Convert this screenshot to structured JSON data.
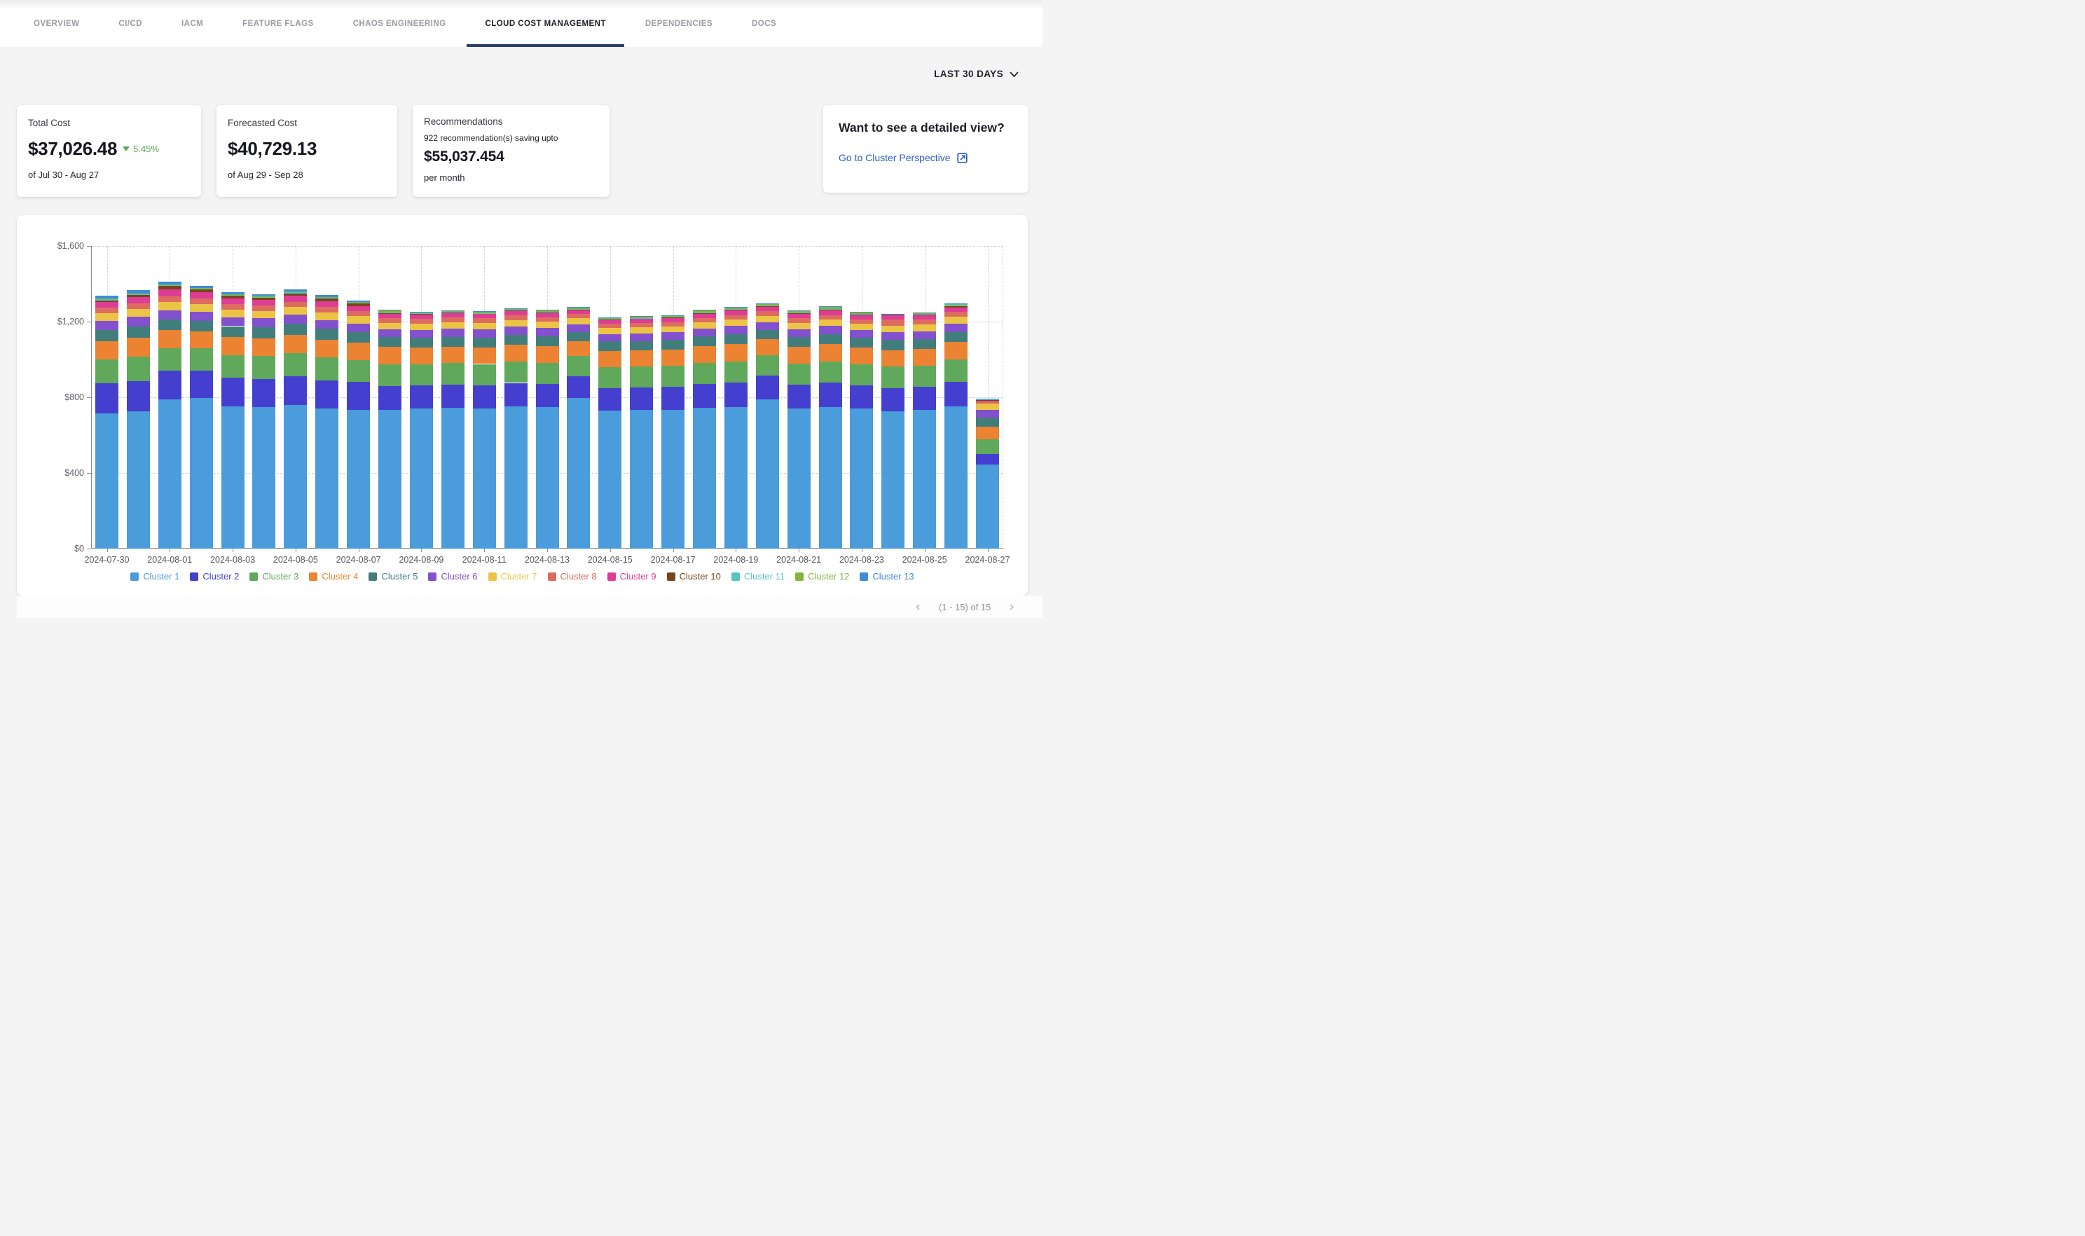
{
  "nav": {
    "tabs": [
      {
        "label": "OVERVIEW",
        "active": false
      },
      {
        "label": "CI/CD",
        "active": false
      },
      {
        "label": "IACM",
        "active": false
      },
      {
        "label": "FEATURE FLAGS",
        "active": false
      },
      {
        "label": "CHAOS ENGINEERING",
        "active": false
      },
      {
        "label": "CLOUD COST MANAGEMENT",
        "active": true
      },
      {
        "label": "DEPENDENCIES",
        "active": false
      },
      {
        "label": "DOCS",
        "active": false
      }
    ]
  },
  "time_filter": {
    "label": "LAST 30 DAYS"
  },
  "cards": {
    "total_cost": {
      "title": "Total Cost",
      "value": "$37,026.48",
      "change": "5.45%",
      "change_direction": "down",
      "change_color": "#57ab5a",
      "period": "of Jul 30 - Aug 27"
    },
    "forecasted_cost": {
      "title": "Forecasted Cost",
      "value": "$40,729.13",
      "period": "of Aug 29 - Sep 28"
    },
    "recommendations": {
      "title": "Recommendations",
      "subtitle": "922 recommendation(s) saving upto",
      "value": "$55,037.454",
      "suffix": "per month"
    },
    "detailed_view": {
      "title": "Want to see a detailed view?",
      "link_label": "Go to Cluster Perspective",
      "link_color": "#2b5fc7"
    }
  },
  "chart_data": {
    "type": "bar",
    "stacked": true,
    "grid": "dashed",
    "legend_position": "bottom",
    "ylim": [
      0,
      1600
    ],
    "yticks": [
      {
        "value": 0,
        "label": "$0"
      },
      {
        "value": 400,
        "label": "$400"
      },
      {
        "value": 800,
        "label": "$800"
      },
      {
        "value": 1200,
        "label": "$1,200"
      },
      {
        "value": 1600,
        "label": "$1,600"
      }
    ],
    "x_label_every": 2,
    "categories": [
      "2024-07-30",
      "2024-07-31",
      "2024-08-01",
      "2024-08-02",
      "2024-08-03",
      "2024-08-04",
      "2024-08-05",
      "2024-08-06",
      "2024-08-07",
      "2024-08-08",
      "2024-08-09",
      "2024-08-10",
      "2024-08-11",
      "2024-08-12",
      "2024-08-13",
      "2024-08-14",
      "2024-08-15",
      "2024-08-16",
      "2024-08-17",
      "2024-08-18",
      "2024-08-19",
      "2024-08-20",
      "2024-08-21",
      "2024-08-22",
      "2024-08-23",
      "2024-08-24",
      "2024-08-25",
      "2024-08-26",
      "2024-08-27"
    ],
    "series": [
      {
        "name": "Cluster 1",
        "color": "#4a9cdb",
        "values": [
          715,
          725,
          790,
          795,
          752,
          748,
          758,
          740,
          735,
          735,
          742,
          745,
          742,
          752,
          748,
          798,
          730,
          732,
          735,
          745,
          750,
          788,
          742,
          750,
          740,
          725,
          732,
          752,
          445
        ]
      },
      {
        "name": "Cluster 2",
        "color": "#453fd0",
        "values": [
          160,
          160,
          150,
          145,
          150,
          150,
          152,
          150,
          145,
          125,
          120,
          122,
          122,
          124,
          123,
          115,
          120,
          120,
          121,
          124,
          126,
          126,
          124,
          126,
          122,
          125,
          124,
          130,
          55
        ]
      },
      {
        "name": "Cluster 3",
        "color": "#5fa85c",
        "values": [
          125,
          130,
          120,
          118,
          122,
          120,
          124,
          120,
          118,
          115,
          112,
          113,
          112,
          113,
          112,
          105,
          110,
          110,
          110,
          112,
          114,
          108,
          112,
          114,
          112,
          112,
          112,
          118,
          78
        ]
      },
      {
        "name": "Cluster 4",
        "color": "#ec8332",
        "values": [
          95,
          100,
          95,
          92,
          95,
          95,
          96,
          95,
          92,
          90,
          88,
          88,
          88,
          89,
          88,
          80,
          85,
          86,
          86,
          88,
          90,
          84,
          88,
          90,
          88,
          88,
          88,
          92,
          66
        ]
      },
      {
        "name": "Cluster 5",
        "color": "#417e7b",
        "values": [
          60,
          60,
          58,
          55,
          57,
          57,
          58,
          57,
          55,
          52,
          52,
          52,
          52,
          53,
          52,
          48,
          50,
          50,
          50,
          52,
          53,
          50,
          52,
          53,
          52,
          52,
          52,
          54,
          50
        ]
      },
      {
        "name": "Cluster 6",
        "color": "#8351ce",
        "values": [
          50,
          50,
          48,
          46,
          47,
          47,
          48,
          47,
          45,
          42,
          42,
          42,
          42,
          42,
          42,
          40,
          40,
          40,
          41,
          42,
          43,
          41,
          42,
          43,
          42,
          42,
          42,
          44,
          40
        ]
      },
      {
        "name": "Cluster 7",
        "color": "#ecc445",
        "values": [
          40,
          42,
          42,
          40,
          40,
          40,
          40,
          40,
          38,
          34,
          34,
          34,
          34,
          34,
          34,
          32,
          32,
          32,
          32,
          33,
          34,
          33,
          33,
          34,
          33,
          34,
          34,
          35,
          34
        ]
      },
      {
        "name": "Cluster 8",
        "color": "#dd6c60",
        "values": [
          28,
          30,
          32,
          30,
          29,
          28,
          29,
          28,
          27,
          25,
          24,
          25,
          25,
          25,
          25,
          23,
          23,
          23,
          23,
          24,
          25,
          24,
          24,
          25,
          24,
          32,
          26,
          26,
          9
        ]
      },
      {
        "name": "Cluster 9",
        "color": "#de3d95",
        "values": [
          30,
          32,
          35,
          33,
          31,
          30,
          31,
          30,
          28,
          24,
          22,
          23,
          22,
          23,
          22,
          20,
          20,
          21,
          21,
          22,
          23,
          22,
          22,
          23,
          22,
          22,
          22,
          24,
          7
        ]
      },
      {
        "name": "Cluster 10",
        "color": "#7a4519",
        "values": [
          10,
          12,
          18,
          15,
          13,
          12,
          14,
          14,
          12,
          5,
          4,
          4,
          4,
          4,
          4,
          3,
          3,
          3,
          3,
          4,
          5,
          5,
          5,
          6,
          4,
          4,
          4,
          6,
          2
        ]
      },
      {
        "name": "Cluster 11",
        "color": "#56c4c0",
        "values": [
          4,
          4,
          4,
          4,
          4,
          4,
          5,
          5,
          5,
          3,
          3,
          3,
          3,
          3,
          3,
          3,
          3,
          3,
          3,
          3,
          3,
          3,
          4,
          4,
          3,
          3,
          4,
          10,
          3
        ]
      },
      {
        "name": "Cluster 12",
        "color": "#86b33a",
        "values": [
          5,
          5,
          5,
          5,
          5,
          5,
          5,
          5,
          4,
          10,
          7,
          7,
          7,
          8,
          8,
          8,
          5,
          7,
          9,
          12,
          11,
          9,
          11,
          13,
          9,
          2,
          5,
          3,
          2
        ]
      },
      {
        "name": "Cluster 13",
        "color": "#3f8cdb",
        "values": [
          14,
          15,
          13,
          12,
          10,
          9,
          10,
          9,
          6,
          2,
          2,
          2,
          2,
          2,
          2,
          2,
          1,
          1,
          1,
          1,
          1,
          2,
          1,
          2,
          1,
          1,
          2,
          2,
          1
        ]
      }
    ],
    "title": "",
    "xlabel": "",
    "ylabel": ""
  },
  "pagination": {
    "prev": "‹",
    "label": "(1 - 15) of 15",
    "next": "›"
  },
  "colors": {
    "active_tab_underline": "#2b3f6d",
    "link": "#2b5fc7",
    "positive_change": "#57ab5a",
    "page_background": "#f4f4f5"
  }
}
